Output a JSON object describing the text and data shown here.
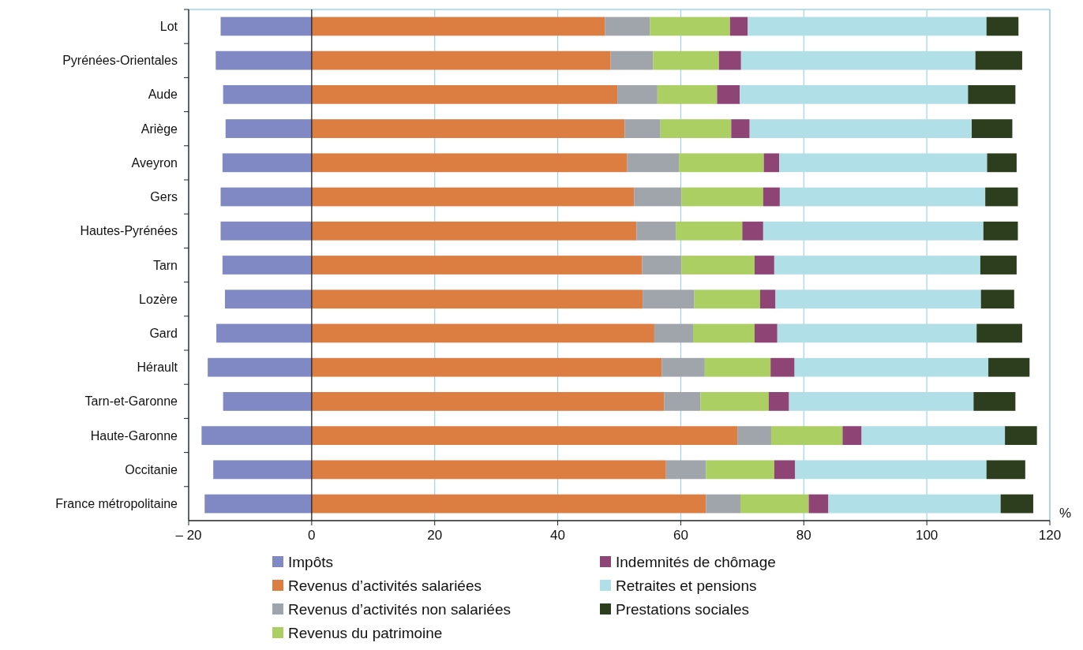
{
  "chart_data": {
    "type": "bar",
    "orientation": "horizontal",
    "stacked": true,
    "categories": [
      "Lot",
      "Pyrénées-Orientales",
      "Aude",
      "Ariège",
      "Aveyron",
      "Gers",
      "Hautes-Pyrénées",
      "Tarn",
      "Lozère",
      "Gard",
      "Hérault",
      "Tarn-et-Garonne",
      "Haute-Garonne",
      "Occitanie",
      "France métropolitaine"
    ],
    "series": [
      {
        "name": "Impôts",
        "color": "#8089c4",
        "values": [
          -14.8,
          -15.6,
          -14.4,
          -14.0,
          -14.5,
          -14.8,
          -14.8,
          -14.5,
          -14.1,
          -15.5,
          -16.9,
          -14.4,
          -17.9,
          -16.0,
          -17.4
        ]
      },
      {
        "name": "Revenus d’activités salariées",
        "color": "#dc7d41",
        "values": [
          47.7,
          48.6,
          49.7,
          50.9,
          51.3,
          52.4,
          52.8,
          53.7,
          53.8,
          55.7,
          56.9,
          57.3,
          69.2,
          57.6,
          64.1
        ]
      },
      {
        "name": "Revenus d’activités non salariées",
        "color": "#a0a4ab",
        "values": [
          7.3,
          6.9,
          6.5,
          5.8,
          8.4,
          7.7,
          6.4,
          6.4,
          8.4,
          6.3,
          7.0,
          5.9,
          5.5,
          6.5,
          5.6
        ]
      },
      {
        "name": "Revenus du patrimoine",
        "color": "#abcf62",
        "values": [
          13.0,
          10.7,
          9.7,
          11.5,
          13.8,
          13.3,
          10.8,
          11.9,
          10.7,
          10.0,
          10.7,
          11.1,
          11.6,
          11.1,
          11.1
        ]
      },
      {
        "name": "Indemnités de chômage",
        "color": "#8e4575",
        "values": [
          2.9,
          3.6,
          3.7,
          3.0,
          2.5,
          2.7,
          3.4,
          3.2,
          2.5,
          3.7,
          3.9,
          3.3,
          3.1,
          3.4,
          3.2
        ]
      },
      {
        "name": "Retraites et pensions",
        "color": "#b1dfe7",
        "values": [
          38.8,
          38.1,
          37.1,
          36.1,
          33.8,
          33.4,
          35.8,
          33.5,
          33.4,
          32.4,
          31.5,
          30.0,
          23.3,
          31.1,
          28.0
        ]
      },
      {
        "name": "Prestations sociales",
        "color": "#2c3e1d",
        "values": [
          5.2,
          7.6,
          7.7,
          6.6,
          4.8,
          5.3,
          5.6,
          5.9,
          5.4,
          7.4,
          6.7,
          6.8,
          5.2,
          6.3,
          5.3
        ]
      }
    ],
    "xlabel": "%",
    "xlim": [
      -20,
      120
    ],
    "xticks": [
      {
        "value": -20,
        "label": "– 20"
      },
      0,
      20,
      40,
      60,
      80,
      100,
      120
    ],
    "grid": "x",
    "legend": "bottom"
  }
}
